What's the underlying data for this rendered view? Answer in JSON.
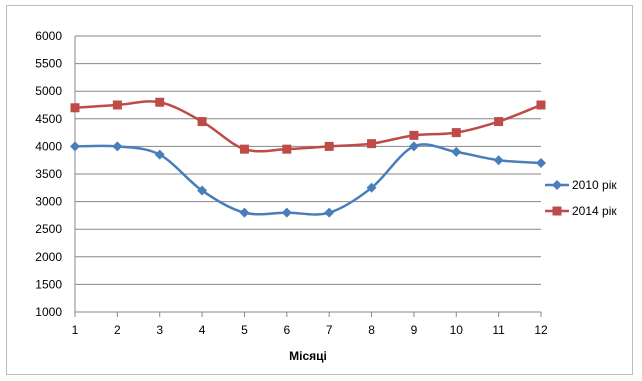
{
  "chart_data": {
    "type": "line",
    "title": "",
    "xlabel": "Місяці",
    "ylabel": "",
    "x": [
      1,
      2,
      3,
      4,
      5,
      6,
      7,
      8,
      9,
      10,
      11,
      12
    ],
    "ylim": [
      1000,
      6000
    ],
    "yticks": [
      1000,
      1500,
      2000,
      2500,
      3000,
      3500,
      4000,
      4500,
      5000,
      5500,
      6000
    ],
    "grid": true,
    "legend_position": "right",
    "series": [
      {
        "name": "2010 рік",
        "color": "#4a7ebb",
        "marker": "diamond",
        "values": [
          4000,
          4000,
          3850,
          3200,
          2800,
          2800,
          2800,
          3250,
          4000,
          3900,
          3750,
          3700
        ]
      },
      {
        "name": "2014 рік",
        "color": "#be4b48",
        "marker": "square",
        "values": [
          4700,
          4750,
          4800,
          4450,
          3950,
          3950,
          4000,
          4050,
          4200,
          4250,
          4450,
          4750
        ]
      }
    ]
  }
}
